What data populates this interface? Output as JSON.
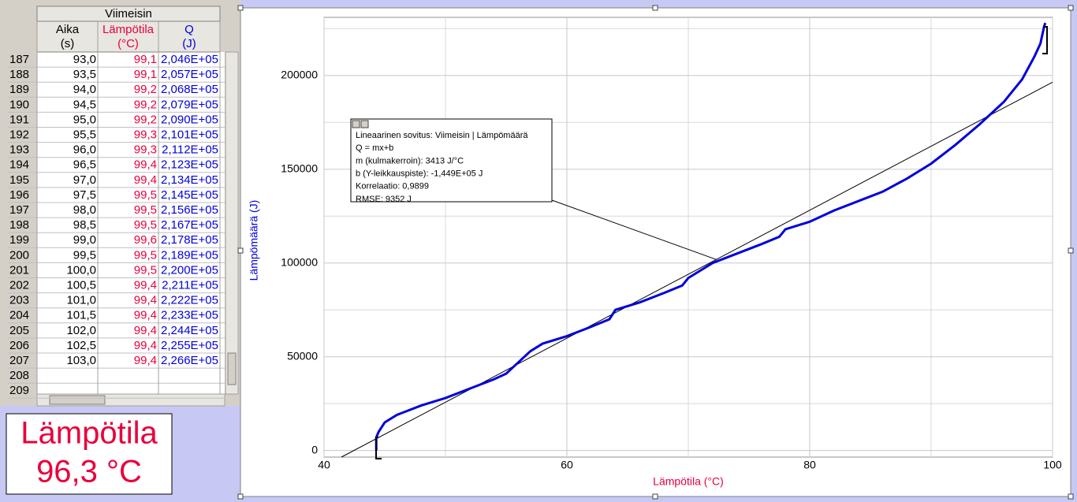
{
  "table": {
    "group_header": "Viimeisin",
    "columns": [
      {
        "name": "Aika",
        "unit": "(s)"
      },
      {
        "name": "Lämpötila",
        "unit": "(°C)"
      },
      {
        "name": "Q",
        "unit": "(J)"
      }
    ],
    "rows": [
      [
        "187",
        "93,0",
        "99,1",
        "2,046E+05"
      ],
      [
        "188",
        "93,5",
        "99,1",
        "2,057E+05"
      ],
      [
        "189",
        "94,0",
        "99,2",
        "2,068E+05"
      ],
      [
        "190",
        "94,5",
        "99,2",
        "2,079E+05"
      ],
      [
        "191",
        "95,0",
        "99,2",
        "2,090E+05"
      ],
      [
        "192",
        "95,5",
        "99,3",
        "2,101E+05"
      ],
      [
        "193",
        "96,0",
        "99,3",
        "2,112E+05"
      ],
      [
        "194",
        "96,5",
        "99,4",
        "2,123E+05"
      ],
      [
        "195",
        "97,0",
        "99,4",
        "2,134E+05"
      ],
      [
        "196",
        "97,5",
        "99,5",
        "2,145E+05"
      ],
      [
        "197",
        "98,0",
        "99,5",
        "2,156E+05"
      ],
      [
        "198",
        "98,5",
        "99,5",
        "2,167E+05"
      ],
      [
        "199",
        "99,0",
        "99,6",
        "2,178E+05"
      ],
      [
        "200",
        "99,5",
        "99,5",
        "2,189E+05"
      ],
      [
        "201",
        "100,0",
        "99,5",
        "2,200E+05"
      ],
      [
        "202",
        "100,5",
        "99,4",
        "2,211E+05"
      ],
      [
        "203",
        "101,0",
        "99,4",
        "2,222E+05"
      ],
      [
        "204",
        "101,5",
        "99,4",
        "2,233E+05"
      ],
      [
        "205",
        "102,0",
        "99,4",
        "2,244E+05"
      ],
      [
        "206",
        "102,5",
        "99,4",
        "2,255E+05"
      ],
      [
        "207",
        "103,0",
        "99,4",
        "2,266E+05"
      ],
      [
        "208"
      ],
      [
        "209"
      ]
    ]
  },
  "meter": {
    "label": "Lämpötila",
    "value": "96,3 °C"
  },
  "chart_data": {
    "type": "line",
    "x_label": "Lämpötila (°C)",
    "y_label": "Lämpömäärä (J)",
    "x": [
      44.3,
      44.3,
      44.5,
      45,
      46,
      48,
      50,
      52,
      54,
      55,
      56,
      57,
      58,
      60,
      62,
      63.5,
      64,
      66,
      68,
      69.5,
      70,
      72,
      74,
      76,
      77.5,
      78,
      80,
      82,
      84,
      86,
      88,
      90,
      92,
      94,
      96,
      97.5,
      98.5,
      99,
      99.3,
      99.4
    ],
    "series": [
      {
        "color": "#0000dd",
        "values": [
          0,
          7000,
          10000,
          15000,
          19000,
          24000,
          28000,
          33000,
          38000,
          41000,
          47000,
          53000,
          57000,
          61000,
          66000,
          70000,
          75000,
          79000,
          84000,
          88000,
          92000,
          100000,
          105000,
          110000,
          114000,
          118000,
          122000,
          128000,
          133000,
          138000,
          145000,
          153000,
          163000,
          174000,
          186000,
          198000,
          210000,
          217000,
          226000,
          228000
        ]
      }
    ],
    "fit": {
      "slope": 3413,
      "intercept": -144900,
      "color": "#000000"
    },
    "annotation": {
      "lines": [
        "Lineaarinen sovitus: Viimeisin | Lämpömäärä",
        "Q = mx+b",
        "m (kulmakerroin): 3413 J/°C",
        "b (Y-leikkauspiste): -1,449E+05 J",
        "Korrelaatio: 0,9899",
        "RMSE: 9352 J"
      ]
    },
    "xlim": [
      40,
      100
    ],
    "ylim": [
      -3500,
      231000
    ],
    "xticks": [
      40,
      60,
      80,
      100
    ],
    "x_minor_ticks": [
      50,
      70,
      90
    ],
    "yticks": [
      0,
      50000,
      100000,
      150000,
      200000
    ],
    "y_minor_ticks": [
      25000,
      75000,
      125000,
      175000,
      225000
    ],
    "grid": true
  }
}
